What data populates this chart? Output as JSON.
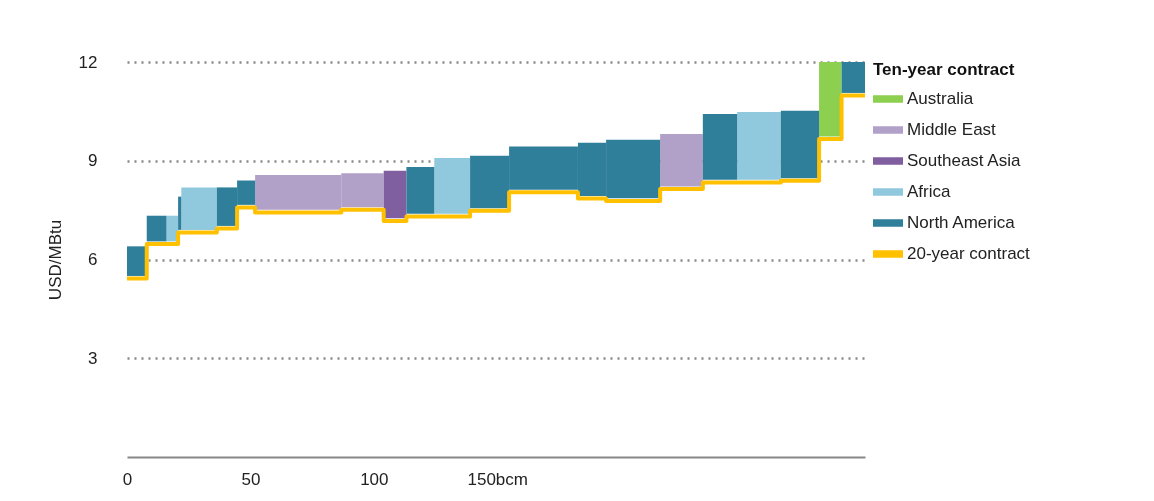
{
  "chart_data": {
    "type": "bar",
    "ylabel": "USD/MBtu",
    "legend_title": "Ten-year contract",
    "legend": "right",
    "grid": "y",
    "xlim": [
      0,
      299
    ],
    "xticks": [
      0,
      50,
      100,
      {
        "value": 150,
        "label": "150bcm"
      }
    ],
    "ylim": [
      0,
      12
    ],
    "yticks": [
      3,
      6,
      9,
      12
    ],
    "x": [
      4,
      12,
      18.35,
      21.35,
      29.2,
      40.5,
      48.25,
      69.35,
      95.4,
      108.6,
      118.85,
      131.75,
      146.9,
      168.75,
      188.4,
      205.05,
      224.65,
      240.25,
      256.05,
      272.65,
      284.95,
      294.25
    ],
    "series": [
      {
        "name": "Australia",
        "color": "#8dcf4f",
        "values": [
          null,
          null,
          null,
          null,
          null,
          null,
          null,
          null,
          null,
          null,
          null,
          null,
          null,
          null,
          null,
          null,
          null,
          null,
          null,
          null,
          2.26,
          null
        ],
        "base": [
          null,
          null,
          null,
          null,
          null,
          null,
          null,
          null,
          null,
          null,
          null,
          null,
          null,
          null,
          null,
          null,
          null,
          null,
          null,
          null,
          9.74,
          null
        ]
      },
      {
        "name": "Middle East",
        "color": "#b1a0c8",
        "values": [
          null,
          null,
          null,
          null,
          null,
          null,
          null,
          1.06,
          1.03,
          null,
          null,
          null,
          null,
          null,
          null,
          null,
          1.59,
          null,
          null,
          null,
          null,
          null
        ],
        "base": [
          null,
          null,
          null,
          null,
          null,
          null,
          null,
          7.51,
          7.59,
          null,
          null,
          null,
          null,
          null,
          null,
          null,
          8.22,
          null,
          null,
          null,
          null,
          null
        ]
      },
      {
        "name": "Southeast Asia",
        "color": "#7f5fa0",
        "values": [
          null,
          null,
          null,
          null,
          null,
          null,
          null,
          null,
          null,
          1.45,
          null,
          null,
          null,
          null,
          null,
          null,
          null,
          null,
          null,
          null,
          null,
          null
        ],
        "base": [
          null,
          null,
          null,
          null,
          null,
          null,
          null,
          null,
          null,
          7.25,
          null,
          null,
          null,
          null,
          null,
          null,
          null,
          null,
          null,
          null,
          null,
          null
        ]
      },
      {
        "name": "Africa",
        "color": "#90c9dd",
        "values": [
          null,
          null,
          0.78,
          null,
          1.29,
          null,
          null,
          null,
          null,
          null,
          null,
          1.69,
          null,
          null,
          null,
          null,
          null,
          null,
          2.06,
          null,
          null,
          null
        ],
        "base": [
          null,
          null,
          6.55,
          null,
          6.9,
          null,
          null,
          null,
          null,
          null,
          null,
          7.39,
          null,
          null,
          null,
          null,
          null,
          null,
          8.42,
          null,
          null,
          null
        ]
      },
      {
        "name": "North America",
        "color": "#2f7f9b",
        "values": [
          0.9,
          0.78,
          null,
          1.01,
          null,
          1.17,
          0.74,
          null,
          null,
          null,
          1.42,
          null,
          1.59,
          1.31,
          1.62,
          1.78,
          null,
          2.0,
          null,
          2.05,
          null,
          0.94
        ],
        "base": [
          5.5,
          6.55,
          null,
          6.9,
          null,
          7.02,
          7.66,
          null,
          null,
          null,
          7.39,
          null,
          7.56,
          8.12,
          7.93,
          7.86,
          null,
          8.42,
          null,
          8.47,
          null,
          11.06
        ]
      },
      {
        "name": "20-year contract",
        "type": "step",
        "color": "#ffc000",
        "x": [
          0,
          8,
          16,
          20.7,
          22,
          36.4,
          44.6,
          51.9,
          86.8,
          104,
          113.2,
          124.5,
          139,
          154.8,
          182.7,
          194.1,
          216,
          233.3,
          247.2,
          264.9,
          280.4,
          289.5,
          299
        ],
        "values": [
          5.42,
          6.47,
          6.47,
          6.82,
          6.82,
          6.94,
          7.58,
          7.43,
          7.51,
          7.17,
          7.31,
          7.31,
          7.48,
          8.04,
          7.85,
          7.78,
          8.14,
          8.34,
          8.34,
          8.39,
          9.66,
          10.98,
          10.98
        ]
      }
    ]
  }
}
